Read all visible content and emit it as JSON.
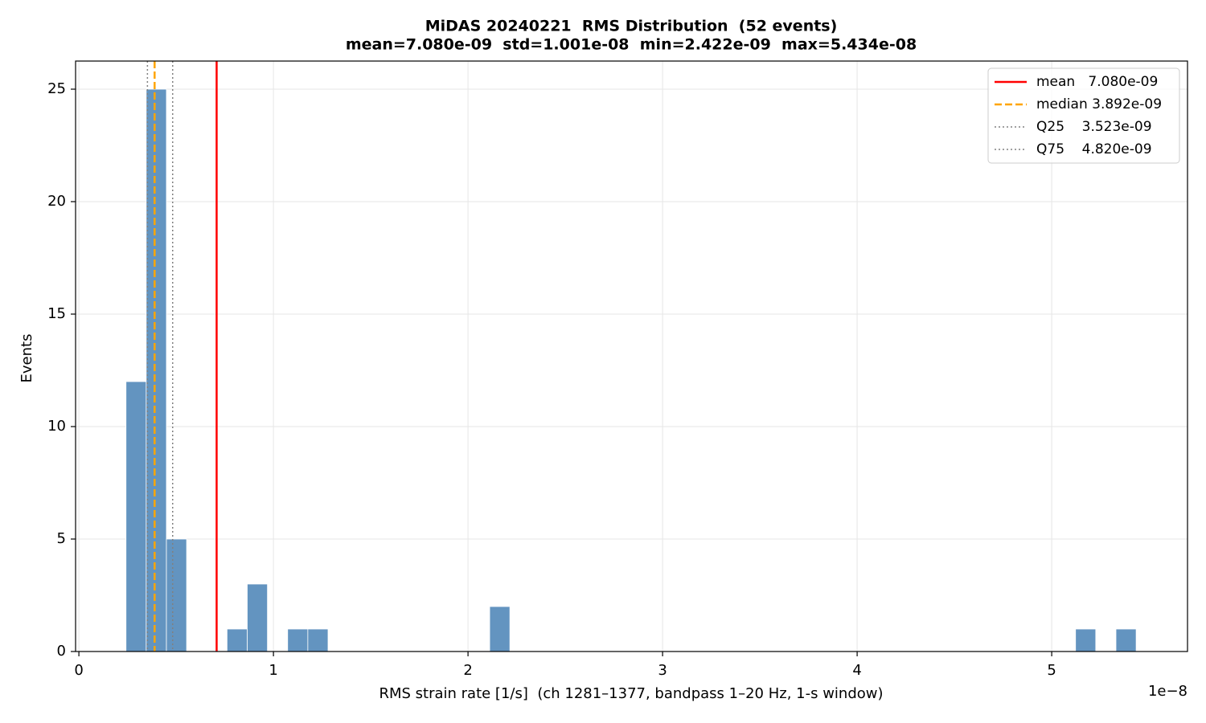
{
  "chart_data": {
    "type": "histogram",
    "title": "MiDAS 20240221  RMS Distribution  (52 events)",
    "subtitle": "mean=7.080e-09  std=1.001e-08  min=2.422e-09  max=5.434e-08",
    "x_label": "RMS strain rate [1/s]  (ch 1281–1377, bandpass 1–20 Hz, 1-s window)",
    "y_label": "Events",
    "x_offset_label": "1e−8",
    "bins": [
      0.2422,
      0.346,
      0.4499,
      0.5537,
      0.6575,
      0.7614,
      0.8652,
      0.9691,
      1.0729,
      1.1767,
      1.2806,
      1.3844,
      1.4882,
      1.5921,
      1.6959,
      1.7997,
      1.9036,
      2.0074,
      2.1113,
      2.2151,
      2.3189,
      2.4228,
      2.5266,
      2.6304,
      2.7343,
      2.8381,
      2.9419,
      3.0458,
      3.1496,
      3.2534,
      3.3573,
      3.4611,
      3.565,
      3.6688,
      3.7726,
      3.8765,
      3.9803,
      4.0841,
      4.188,
      4.2918,
      4.3956,
      4.4995,
      4.6033,
      4.7072,
      4.811,
      4.9148,
      5.0187,
      5.1225,
      5.2263,
      5.3302,
      5.434
    ],
    "values": [
      12,
      25,
      5,
      0,
      0,
      1,
      3,
      0,
      1,
      1,
      0,
      0,
      0,
      0,
      0,
      0,
      0,
      0,
      2,
      0,
      0,
      0,
      0,
      0,
      0,
      0,
      0,
      0,
      0,
      0,
      0,
      0,
      0,
      0,
      0,
      0,
      0,
      0,
      0,
      0,
      0,
      0,
      0,
      0,
      0,
      0,
      0,
      1,
      0,
      1
    ],
    "color": "#6394c0",
    "vlines": [
      {
        "name": "mean   7.080e-09",
        "x": 0.708,
        "color": "#ff0000",
        "style": "solid"
      },
      {
        "name": "median 3.892e-09",
        "x": 0.3892,
        "color": "#ffa500",
        "style": "dashed"
      },
      {
        "name": "Q25    3.523e-09",
        "x": 0.3523,
        "color": "#808080",
        "style": "dotted"
      },
      {
        "name": "Q75    4.820e-09",
        "x": 0.482,
        "color": "#808080",
        "style": "dotted"
      }
    ],
    "xlim": [
      -0.017,
      5.698
    ],
    "ylim": [
      0,
      26.25
    ],
    "xticks": [
      0,
      1,
      2,
      3,
      4,
      5
    ],
    "yticks": [
      0,
      5,
      10,
      15,
      20,
      25
    ],
    "grid": true,
    "legend": "upper right"
  }
}
